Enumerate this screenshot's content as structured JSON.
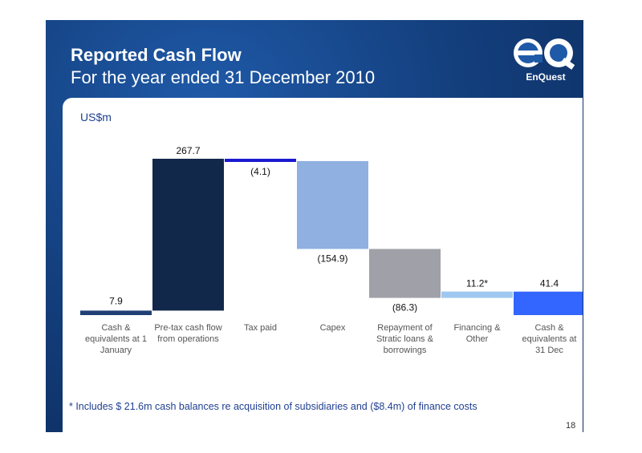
{
  "slide": {
    "title": "Reported Cash Flow",
    "subtitle": "For the year ended 31 December 2010",
    "logo_text": "EnQuest",
    "page_number": "18",
    "footnote": "* Includes $ 21.6m cash balances re acquisition of subsidiaries and ($8.4m) of finance costs"
  },
  "chart_data": {
    "type": "bar",
    "subtype": "waterfall",
    "unit_label": "US$m",
    "categories": [
      [
        "Cash &",
        "equivalents at 1",
        "January"
      ],
      [
        "Pre-tax cash flow",
        "from operations"
      ],
      [
        "Tax paid"
      ],
      [
        "Capex"
      ],
      [
        "Repayment of",
        "Stratic loans &",
        "borrowings"
      ],
      [
        "Financing &",
        "Other"
      ],
      [
        "Cash &",
        "equivalents at",
        "31 Dec"
      ]
    ],
    "values": [
      7.9,
      267.7,
      -4.1,
      -154.9,
      -86.3,
      11.2,
      41.4
    ],
    "data_labels": [
      "7.9",
      "267.7",
      "(4.1)",
      "(154.9)",
      "(86.3)",
      "11.2*",
      "41.4"
    ],
    "colors": [
      "#1f3f75",
      "#12284a",
      "#1a1ad0",
      "#8fb0e0",
      "#a0a0a8",
      "#9ec8f0",
      "#3366ff"
    ],
    "axis_min": 0,
    "axis_max": 275.6
  }
}
